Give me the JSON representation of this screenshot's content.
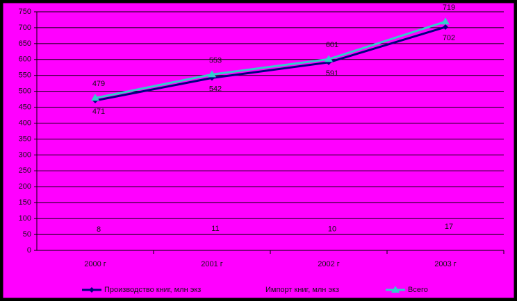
{
  "chart_data": {
    "type": "line",
    "categories": [
      "2000 г",
      "2001 г",
      "2002 г",
      "2003 г"
    ],
    "series": [
      {
        "name": "Производство книг, млн экз",
        "color": "#000080",
        "marker": "diamond",
        "values": [
          471,
          542,
          591,
          702
        ]
      },
      {
        "name": "Импорт книг, млн экз",
        "color": "#ff00ff",
        "marker": "none",
        "values": [
          8,
          11,
          10,
          17
        ]
      },
      {
        "name": "Всего",
        "color": "#33cccc",
        "marker": "triangle",
        "values": [
          479,
          553,
          601,
          719
        ]
      }
    ],
    "ylim": [
      0,
      750
    ],
    "yticks": [
      0,
      50,
      100,
      150,
      200,
      250,
      300,
      350,
      400,
      450,
      500,
      550,
      600,
      650,
      700,
      750
    ],
    "grid": true,
    "legend": "bottom"
  }
}
